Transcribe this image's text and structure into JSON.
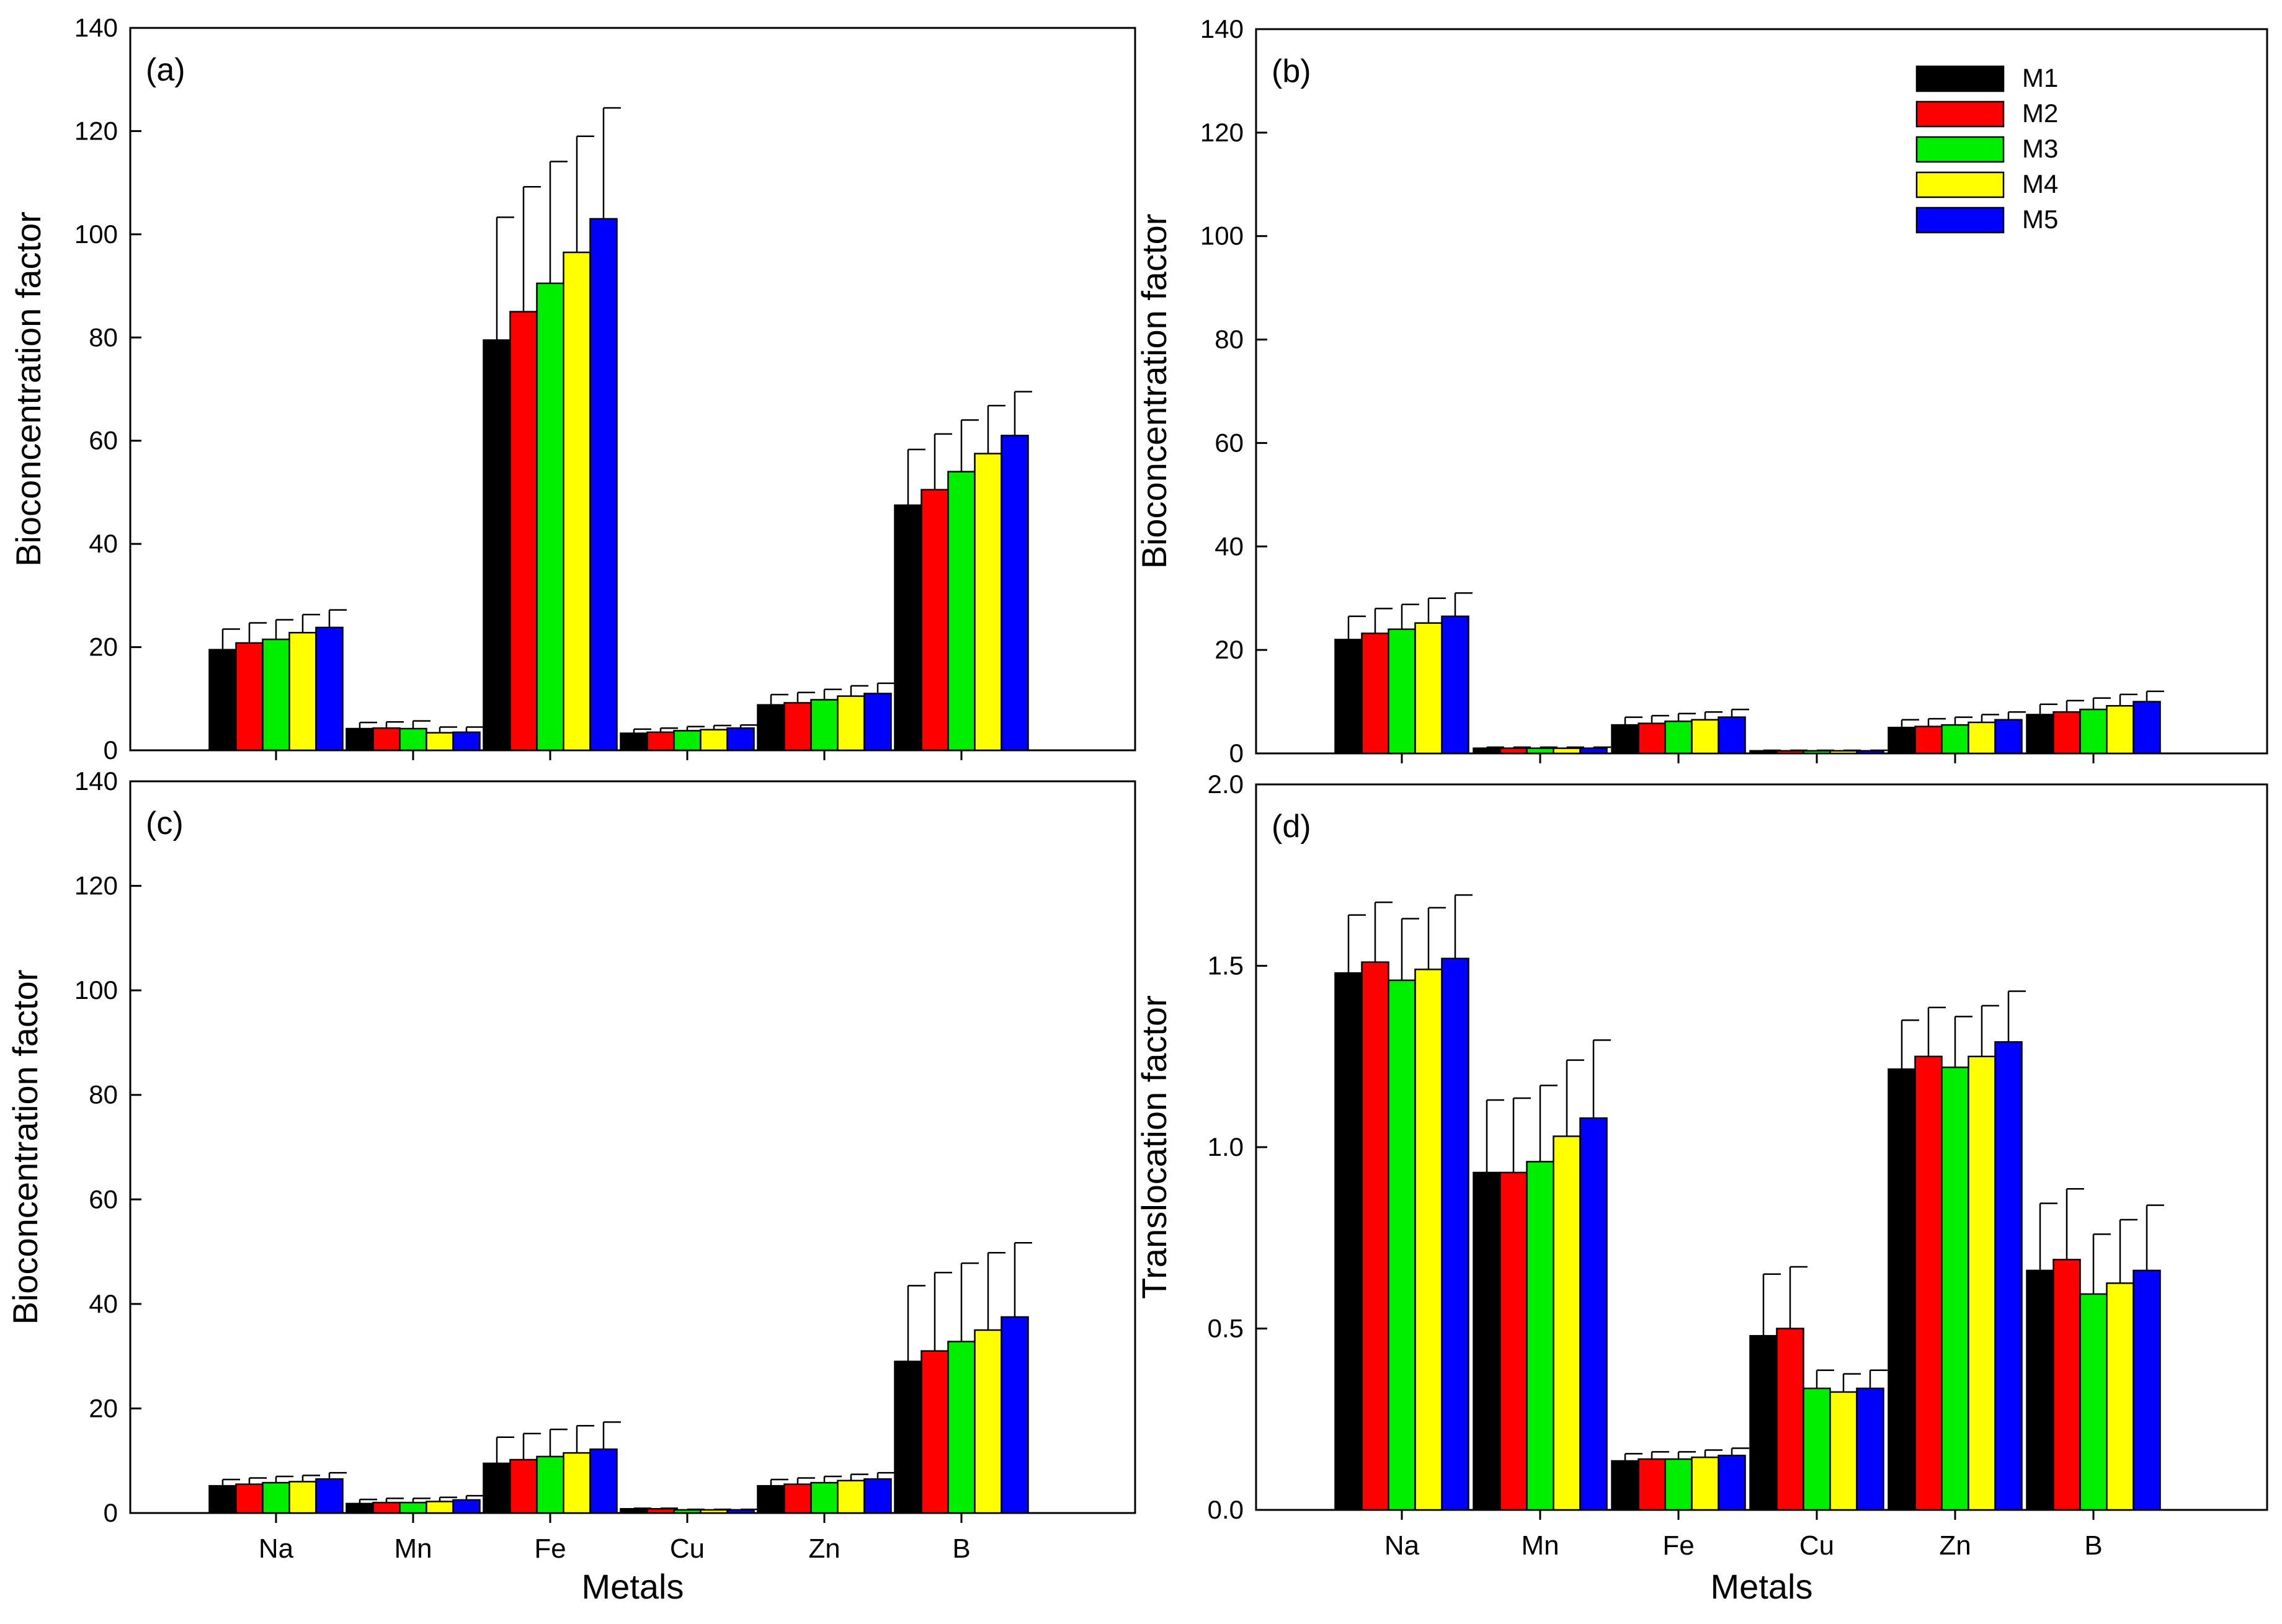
{
  "colors": {
    "M1": "#000000",
    "M2": "#ff0000",
    "M3": "#00ee00",
    "M4": "#ffff00",
    "M5": "#0000ff"
  },
  "chart_data": [
    {
      "type": "bar",
      "panel": "(a)",
      "ylabel": "Bioconcentration factor",
      "xlabel": "",
      "ylim": [
        0,
        140
      ],
      "yticks": [
        "0",
        "20",
        "40",
        "60",
        "80",
        "100",
        "120",
        "140"
      ],
      "categories": [
        "Na",
        "Mn",
        "Fe",
        "Cu",
        "Zn",
        "B"
      ],
      "show_categories": false,
      "series": [
        {
          "name": "M1",
          "values": [
            19.5,
            4.2,
            79.5,
            3.3,
            8.8,
            47.5
          ],
          "errors": [
            4.0,
            1.2,
            23.8,
            0.8,
            2.0,
            10.8
          ]
        },
        {
          "name": "M2",
          "values": [
            20.8,
            4.3,
            85.0,
            3.5,
            9.2,
            50.5
          ],
          "errors": [
            3.9,
            1.2,
            24.2,
            0.8,
            2.0,
            10.8
          ]
        },
        {
          "name": "M3",
          "values": [
            21.5,
            4.2,
            90.5,
            3.8,
            9.8,
            54.0
          ],
          "errors": [
            3.8,
            1.5,
            23.6,
            0.8,
            2.0,
            10.0
          ]
        },
        {
          "name": "M4",
          "values": [
            22.8,
            3.4,
            96.5,
            4.0,
            10.5,
            57.5
          ],
          "errors": [
            3.5,
            1.1,
            22.5,
            0.8,
            2.0,
            9.3
          ]
        },
        {
          "name": "M5",
          "values": [
            23.8,
            3.5,
            103.0,
            4.3,
            11.0,
            61.0
          ],
          "errors": [
            3.4,
            1.0,
            21.5,
            0.6,
            2.0,
            8.5
          ]
        }
      ]
    },
    {
      "type": "bar",
      "panel": "(b)",
      "ylabel": "Bioconcentration factor",
      "xlabel": "",
      "ylim": [
        0,
        140
      ],
      "yticks": [
        "0",
        "20",
        "40",
        "60",
        "80",
        "100",
        "120",
        "140"
      ],
      "categories": [
        "Na",
        "Mn",
        "Fe",
        "Cu",
        "Zn",
        "B"
      ],
      "show_categories": false,
      "legend": [
        "M1",
        "M2",
        "M3",
        "M4",
        "M5"
      ],
      "series": [
        {
          "name": "M1",
          "values": [
            22.0,
            1.0,
            5.5,
            0.5,
            5.0,
            7.5
          ],
          "errors": [
            4.5,
            0.2,
            1.5,
            0.1,
            1.5,
            2.0
          ]
        },
        {
          "name": "M2",
          "values": [
            23.2,
            1.0,
            5.8,
            0.5,
            5.2,
            8.0
          ],
          "errors": [
            4.8,
            0.2,
            1.5,
            0.1,
            1.5,
            2.2
          ]
        },
        {
          "name": "M3",
          "values": [
            24.0,
            1.0,
            6.2,
            0.5,
            5.5,
            8.5
          ],
          "errors": [
            4.8,
            0.2,
            1.5,
            0.1,
            1.5,
            2.2
          ]
        },
        {
          "name": "M4",
          "values": [
            25.2,
            1.0,
            6.5,
            0.5,
            6.0,
            9.2
          ],
          "errors": [
            4.8,
            0.2,
            1.5,
            0.1,
            1.5,
            2.2
          ]
        },
        {
          "name": "M5",
          "values": [
            26.5,
            1.0,
            7.0,
            0.5,
            6.5,
            10.0
          ],
          "errors": [
            4.5,
            0.2,
            1.5,
            0.1,
            1.5,
            2.0
          ]
        }
      ]
    },
    {
      "type": "bar",
      "panel": "(c)",
      "ylabel": "Bioconcentration factor",
      "xlabel": "Metals",
      "ylim": [
        0,
        140
      ],
      "yticks": [
        "0",
        "20",
        "40",
        "60",
        "80",
        "100",
        "120",
        "140"
      ],
      "categories": [
        "Na",
        "Mn",
        "Fe",
        "Cu",
        "Zn",
        "B"
      ],
      "show_categories": true,
      "series": [
        {
          "name": "M1",
          "values": [
            5.2,
            1.8,
            9.5,
            0.8,
            5.2,
            29.0
          ],
          "errors": [
            1.2,
            0.8,
            5.0,
            0.1,
            1.2,
            14.5
          ]
        },
        {
          "name": "M2",
          "values": [
            5.5,
            2.0,
            10.2,
            0.8,
            5.5,
            31.0
          ],
          "errors": [
            1.2,
            0.8,
            5.0,
            0.1,
            1.2,
            15.0
          ]
        },
        {
          "name": "M3",
          "values": [
            5.8,
            2.0,
            10.8,
            0.6,
            5.8,
            32.8
          ],
          "errors": [
            1.2,
            0.8,
            5.2,
            0.1,
            1.2,
            15.0
          ]
        },
        {
          "name": "M4",
          "values": [
            6.0,
            2.2,
            11.5,
            0.6,
            6.2,
            35.0
          ],
          "errors": [
            1.2,
            0.8,
            5.2,
            0.1,
            1.2,
            14.8
          ]
        },
        {
          "name": "M5",
          "values": [
            6.5,
            2.5,
            12.2,
            0.6,
            6.5,
            37.5
          ],
          "errors": [
            1.2,
            0.8,
            5.2,
            0.1,
            1.2,
            14.2
          ]
        }
      ]
    },
    {
      "type": "bar",
      "panel": "(d)",
      "ylabel": "Translocation factor",
      "xlabel": "Metals",
      "ylim": [
        0,
        2.0
      ],
      "yticks": [
        "0.0",
        "0.5",
        "1.0",
        "1.5",
        "2.0"
      ],
      "categories": [
        "Na",
        "Mn",
        "Fe",
        "Cu",
        "Zn",
        "B"
      ],
      "show_categories": true,
      "series": [
        {
          "name": "M1",
          "values": [
            1.48,
            0.93,
            0.135,
            0.48,
            1.215,
            0.66
          ],
          "errors": [
            0.16,
            0.2,
            0.02,
            0.17,
            0.135,
            0.185
          ]
        },
        {
          "name": "M2",
          "values": [
            1.51,
            0.93,
            0.14,
            0.5,
            1.25,
            0.69
          ],
          "errors": [
            0.165,
            0.205,
            0.02,
            0.17,
            0.135,
            0.195
          ]
        },
        {
          "name": "M3",
          "values": [
            1.46,
            0.96,
            0.14,
            0.335,
            1.22,
            0.595
          ],
          "errors": [
            0.17,
            0.21,
            0.02,
            0.05,
            0.14,
            0.165
          ]
        },
        {
          "name": "M4",
          "values": [
            1.49,
            1.03,
            0.145,
            0.325,
            1.25,
            0.625
          ],
          "errors": [
            0.17,
            0.21,
            0.02,
            0.05,
            0.14,
            0.175
          ]
        },
        {
          "name": "M5",
          "values": [
            1.52,
            1.08,
            0.15,
            0.335,
            1.29,
            0.66
          ],
          "errors": [
            0.175,
            0.215,
            0.02,
            0.05,
            0.14,
            0.18
          ]
        }
      ]
    }
  ]
}
